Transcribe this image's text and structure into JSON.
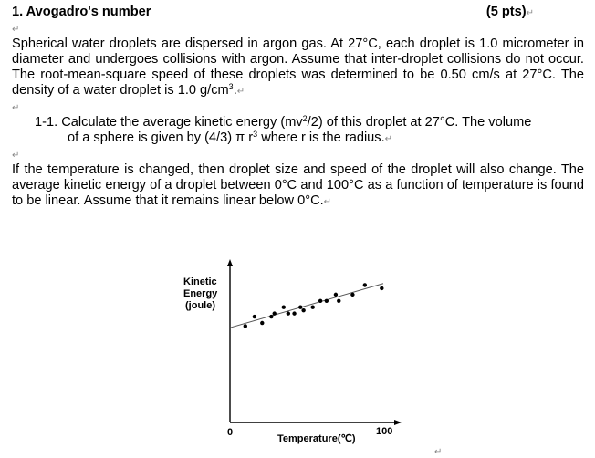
{
  "question": {
    "title": "1. Avogadro's number",
    "points": "(5 pts)",
    "para1": "Spherical water droplets are dispersed in argon gas. At 27°C, each droplet is 1.0 micrometer in diameter and undergoes collisions with argon. Assume that inter-droplet collisions do not occur. The root-mean-square speed of these droplets was determined to be 0.50 cm/s at 27°C. The density of a water droplet is 1.0 g/cm",
    "para1_sup": "3",
    "para1_end": ".",
    "sub1_a": "1-1. Calculate the average kinetic energy (mv",
    "sub1_sup": "2",
    "sub1_b": "/2) of this droplet at 27°C. The volume",
    "sub1_line2_a": "of a sphere is given by (4/3) π r",
    "sub1_line2_sup": "3",
    "sub1_line2_b": " where r is the radius.",
    "para2": "If the temperature is changed, then droplet size and speed of the droplet will also change. The average kinetic energy of a droplet between 0°C and 100°C as a function of temperature is found to be linear. Assume that it remains linear below 0°C.",
    "paragraph_mark": "↵"
  },
  "chart_data": {
    "type": "scatter",
    "xlabel": "Temperature(℃)",
    "ylabel_lines": [
      "Kinetic",
      "Energy",
      "(joule)"
    ],
    "x_tick_labels": [
      "0",
      "100"
    ],
    "xlim": [
      0,
      100
    ],
    "y_unit_note": "relative (no y tick labels shown)",
    "ylim": [
      0,
      1
    ],
    "grid": false,
    "points": [
      [
        10,
        0.61
      ],
      [
        16,
        0.67
      ],
      [
        21,
        0.63
      ],
      [
        27,
        0.67
      ],
      [
        29,
        0.69
      ],
      [
        35,
        0.73
      ],
      [
        38,
        0.69
      ],
      [
        42,
        0.69
      ],
      [
        46,
        0.73
      ],
      [
        48,
        0.71
      ],
      [
        54,
        0.73
      ],
      [
        59,
        0.77
      ],
      [
        63,
        0.77
      ],
      [
        69,
        0.81
      ],
      [
        71,
        0.77
      ],
      [
        80,
        0.81
      ],
      [
        88,
        0.87
      ],
      [
        99,
        0.85
      ]
    ],
    "fit_line": [
      [
        0,
        0.6
      ],
      [
        100,
        0.88
      ]
    ]
  }
}
